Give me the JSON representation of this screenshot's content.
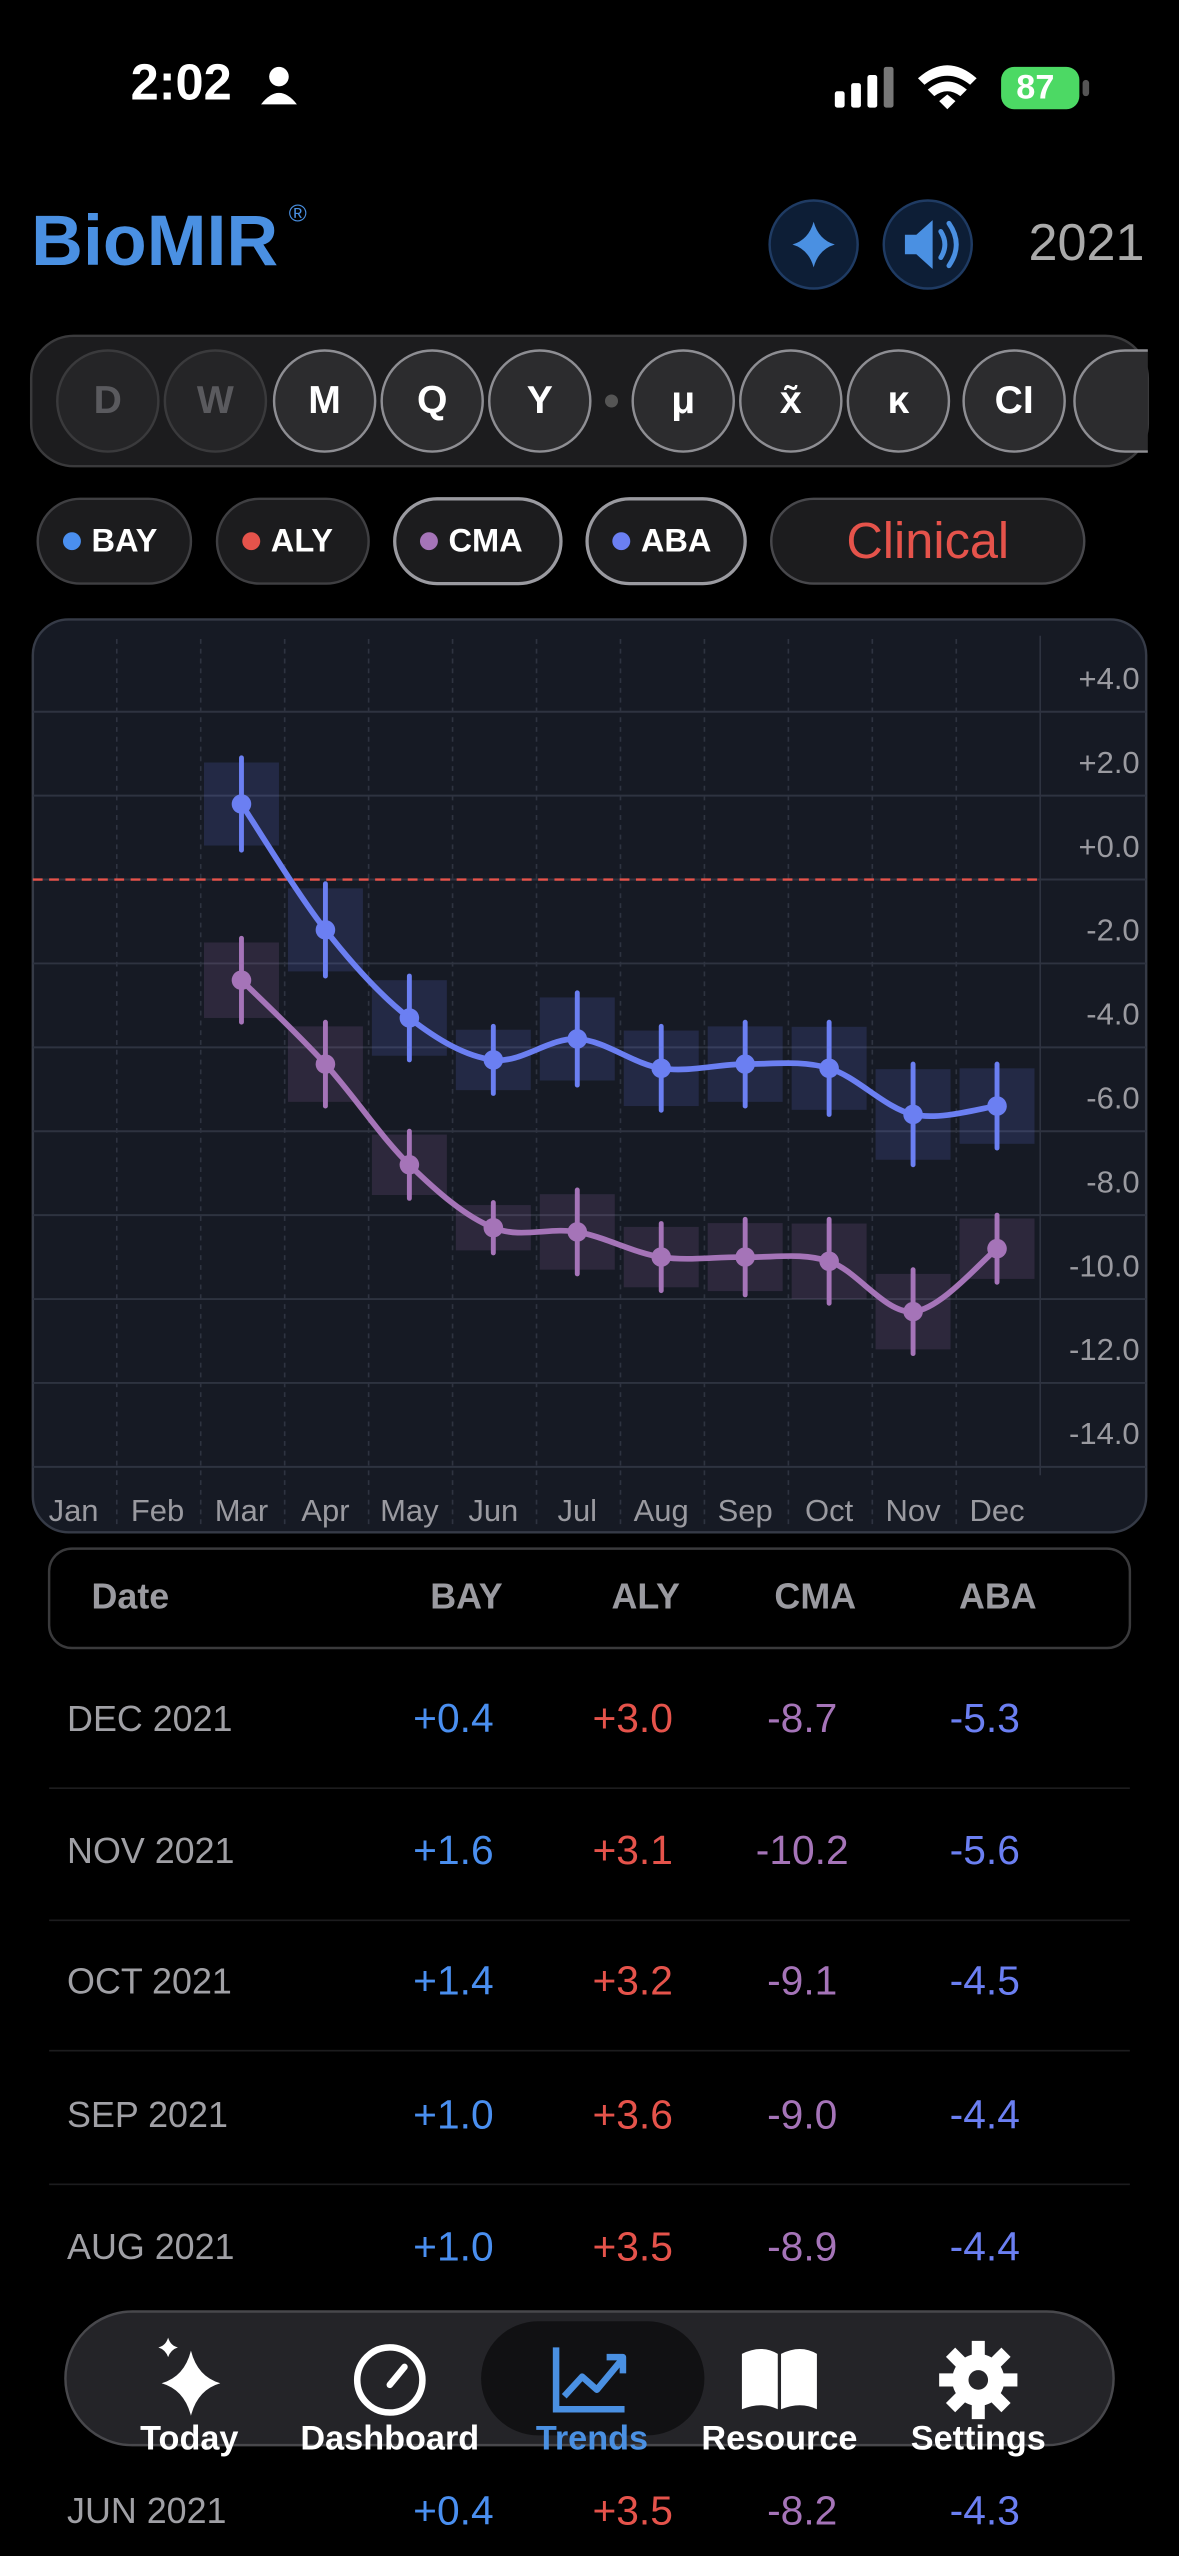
{
  "status": {
    "time": "2:02",
    "battery": "87"
  },
  "header": {
    "brand": "BioMIR",
    "mark": "®",
    "year": "2021"
  },
  "filters": [
    {
      "label": "D",
      "enabled": false
    },
    {
      "label": "W",
      "enabled": false
    },
    {
      "label": "M",
      "enabled": true
    },
    {
      "label": "Q",
      "enabled": true
    },
    {
      "label": "Y",
      "enabled": true
    },
    {
      "label": "μ",
      "enabled": true
    },
    {
      "label": "x̃",
      "enabled": true
    },
    {
      "label": "κ",
      "enabled": true
    },
    {
      "label": "CI",
      "enabled": true
    }
  ],
  "chips": [
    {
      "label": "BAY",
      "color": "#4a8ff0"
    },
    {
      "label": "ALY",
      "color": "#e5534b"
    }
  ],
  "clinical": "Clinical",
  "chart_data": {
    "type": "line",
    "categories": [
      "Jan",
      "Feb",
      "Mar",
      "Apr",
      "May",
      "Jun",
      "Jul",
      "Aug",
      "Sep",
      "Oct",
      "Nov",
      "Dec"
    ],
    "series": [
      {
        "name": "CMA",
        "color": "#a574b8",
        "values": [
          null,
          null,
          -2.4,
          -4.4,
          -6.8,
          -8.3,
          -8.4,
          -9.0,
          -9.0,
          -9.1,
          -10.3,
          -8.8
        ],
        "errors": [
          null,
          null,
          1.0,
          1.0,
          0.8,
          0.6,
          1.0,
          0.8,
          0.9,
          1.0,
          1.0,
          0.8
        ]
      },
      {
        "name": "ABA",
        "color": "#6b7ff2",
        "values": [
          null,
          null,
          1.8,
          -1.2,
          -3.3,
          -4.3,
          -3.8,
          -4.5,
          -4.4,
          -4.5,
          -5.6,
          -5.4
        ],
        "errors": [
          null,
          null,
          1.1,
          1.1,
          1.0,
          0.8,
          1.1,
          1.0,
          1.0,
          1.1,
          1.2,
          1.0
        ]
      }
    ],
    "ylim": [
      -14.2,
      6.2
    ],
    "yticks": [
      {
        "value": 4,
        "label": "+4.0"
      },
      {
        "value": 2,
        "label": "+2.0"
      },
      {
        "value": 0,
        "label": "+0.0"
      },
      {
        "value": -2,
        "label": "-2.0"
      },
      {
        "value": -4,
        "label": "-4.0"
      },
      {
        "value": -6,
        "label": "-6.0"
      },
      {
        "value": -8,
        "label": "-8.0"
      },
      {
        "value": -10,
        "label": "-10.0"
      },
      {
        "value": -12,
        "label": "-12.0"
      },
      {
        "value": -14,
        "label": "-14.0"
      }
    ],
    "reference_line": {
      "value": 0,
      "color": "#e5534b"
    },
    "grid": true
  },
  "table": {
    "columns": [
      "Date",
      "BAY",
      "ALY",
      "CMA",
      "ABA"
    ],
    "rows": [
      [
        "DEC 2021",
        "+0.4",
        "+3.0",
        "-8.7",
        "-5.3"
      ],
      [
        "NOV 2021",
        "+1.6",
        "+3.1",
        "-10.2",
        "-5.6"
      ],
      [
        "OCT 2021",
        "+1.4",
        "+3.2",
        "-9.1",
        "-4.5"
      ],
      [
        "SEP 2021",
        "+1.0",
        "+3.6",
        "-9.0",
        "-4.4"
      ],
      [
        "AUG 2021",
        "+1.0",
        "+3.5",
        "-8.9",
        "-4.4"
      ],
      [
        "JUN 2021",
        "+0.4",
        "+3.5",
        "-8.2",
        "-4.3"
      ]
    ]
  },
  "tabs": [
    {
      "label": "Today",
      "active": false
    },
    {
      "label": "Dashboard",
      "active": false
    },
    {
      "label": "Trends",
      "active": true
    },
    {
      "label": "Resource",
      "active": false
    },
    {
      "label": "Settings",
      "active": false
    }
  ]
}
